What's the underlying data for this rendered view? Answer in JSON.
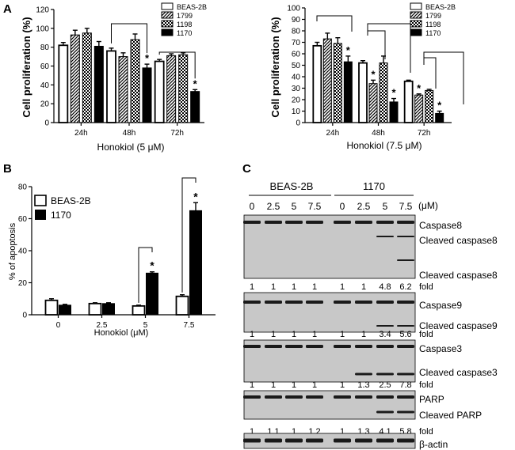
{
  "colors": {
    "ink": "#000000",
    "paper": "#ffffff",
    "blot_bg": "#c8c8c8",
    "band": "#1a1a1a"
  },
  "panel_a": {
    "label": "A",
    "charts": [
      {
        "type": "bar",
        "ylabel": "Cell proliferation (%)",
        "xlabel": "Honokiol (5 μM)",
        "ylim": [
          0,
          120
        ],
        "yticks": [
          "0",
          "20",
          "40",
          "60",
          "80",
          "100",
          "120"
        ],
        "categories": [
          "24h",
          "48h",
          "72h"
        ],
        "legend": [
          "BEAS-2B",
          "1799",
          "1198",
          "1170"
        ],
        "series": [
          {
            "name": "BEAS-2B",
            "pattern": "open",
            "values": [
              82,
              76,
              65
            ],
            "errors": [
              3,
              3,
              2
            ]
          },
          {
            "name": "1799",
            "pattern": "diag",
            "values": [
              93,
              70,
              71
            ],
            "errors": [
              5,
              4,
              2
            ]
          },
          {
            "name": "1198",
            "pattern": "check",
            "values": [
              95,
              88,
              72
            ],
            "errors": [
              5,
              6,
              2
            ]
          },
          {
            "name": "1170",
            "pattern": "solid",
            "values": [
              81,
              58,
              33
            ],
            "errors": [
              5,
              4,
              2
            ]
          }
        ],
        "stars": [
          {
            "category": 1,
            "series": 3,
            "text": "*"
          },
          {
            "category": 2,
            "series": 3,
            "text": "*"
          }
        ],
        "brackets": [
          {
            "category": 1,
            "from": 0,
            "to": 3
          },
          {
            "category": 2,
            "from": 0,
            "to": 3
          }
        ]
      },
      {
        "type": "bar",
        "ylabel": "Cell proliferation (%)",
        "xlabel": "Honokiol (7.5 μM)",
        "ylim": [
          0,
          100
        ],
        "yticks": [
          "0",
          "10",
          "20",
          "30",
          "40",
          "50",
          "60",
          "70",
          "80",
          "90",
          "100"
        ],
        "categories": [
          "24h",
          "48h",
          "72h"
        ],
        "legend": [
          "BEAS-2B",
          "1799",
          "1198",
          "1170"
        ],
        "series": [
          {
            "name": "BEAS-2B",
            "pattern": "open",
            "values": [
              67,
              52,
              36
            ],
            "errors": [
              3,
              2,
              1
            ]
          },
          {
            "name": "1799",
            "pattern": "diag",
            "values": [
              73,
              34,
              24
            ],
            "errors": [
              5,
              3,
              1
            ]
          },
          {
            "name": "1198",
            "pattern": "check",
            "values": [
              69,
              52,
              28
            ],
            "errors": [
              5,
              6,
              1
            ]
          },
          {
            "name": "1170",
            "pattern": "solid",
            "values": [
              53,
              18,
              8
            ],
            "errors": [
              5,
              3,
              2
            ]
          }
        ],
        "stars": [
          {
            "category": 0,
            "series": 3,
            "text": "*"
          },
          {
            "category": 1,
            "series": 1,
            "text": "*"
          },
          {
            "category": 1,
            "series": 3,
            "text": "*"
          },
          {
            "category": 2,
            "series": 1,
            "text": "*"
          },
          {
            "category": 2,
            "series": 3,
            "text": "*"
          }
        ]
      }
    ]
  },
  "panel_b": {
    "label": "B",
    "type": "bar",
    "ylabel": "% of apoptosis",
    "xlabel": "Honokiol (μM)",
    "ylim": [
      0,
      80
    ],
    "yticks": [
      "0",
      "20",
      "40",
      "60",
      "80"
    ],
    "categories": [
      "0",
      "2.5",
      "5",
      "7.5"
    ],
    "legend": [
      "BEAS-2B",
      "1170"
    ],
    "series": [
      {
        "name": "BEAS-2B",
        "pattern": "open",
        "values": [
          9,
          7,
          5.5,
          11.5
        ],
        "errors": [
          1,
          0.5,
          0.5,
          1
        ]
      },
      {
        "name": "1170",
        "pattern": "solid",
        "values": [
          6,
          7,
          26,
          65
        ],
        "errors": [
          0.5,
          0.5,
          0.8,
          5
        ]
      }
    ],
    "stars": [
      {
        "category": 2,
        "series": 1,
        "text": "*"
      },
      {
        "category": 3,
        "series": 1,
        "text": "*"
      }
    ]
  },
  "panel_c": {
    "label": "C",
    "group_left": "BEAS-2B",
    "group_right": "1170",
    "unit": "(μM)",
    "doses": [
      "0",
      "2.5",
      "5",
      "7.5",
      "0",
      "2.5",
      "5",
      "7.5"
    ],
    "fold_label": "fold",
    "blots": [
      {
        "labels": [
          "Caspase8",
          "Cleaved caspase8",
          "Cleaved caspase8"
        ],
        "folds": [
          "1",
          "1",
          "1",
          "1",
          "1",
          "1",
          "4.8",
          "6.2"
        ]
      },
      {
        "labels": [
          "Caspase9",
          "Cleaved caspase9"
        ],
        "folds": [
          "1",
          "1",
          "1",
          "1",
          "1",
          "1",
          "3.4",
          "5.6"
        ]
      },
      {
        "labels": [
          "Caspase3",
          "Cleaved caspase3"
        ],
        "folds": [
          "1",
          "1",
          "1",
          "1",
          "1",
          "1.3",
          "2.5",
          "7.8"
        ]
      },
      {
        "labels": [
          "PARP",
          "Cleaved PARP"
        ],
        "folds": [
          "1",
          "1.1",
          "1",
          "1.2",
          "1",
          "1.3",
          "4.1",
          "5.8"
        ]
      },
      {
        "labels": [
          "β-actin"
        ],
        "folds": []
      }
    ]
  }
}
